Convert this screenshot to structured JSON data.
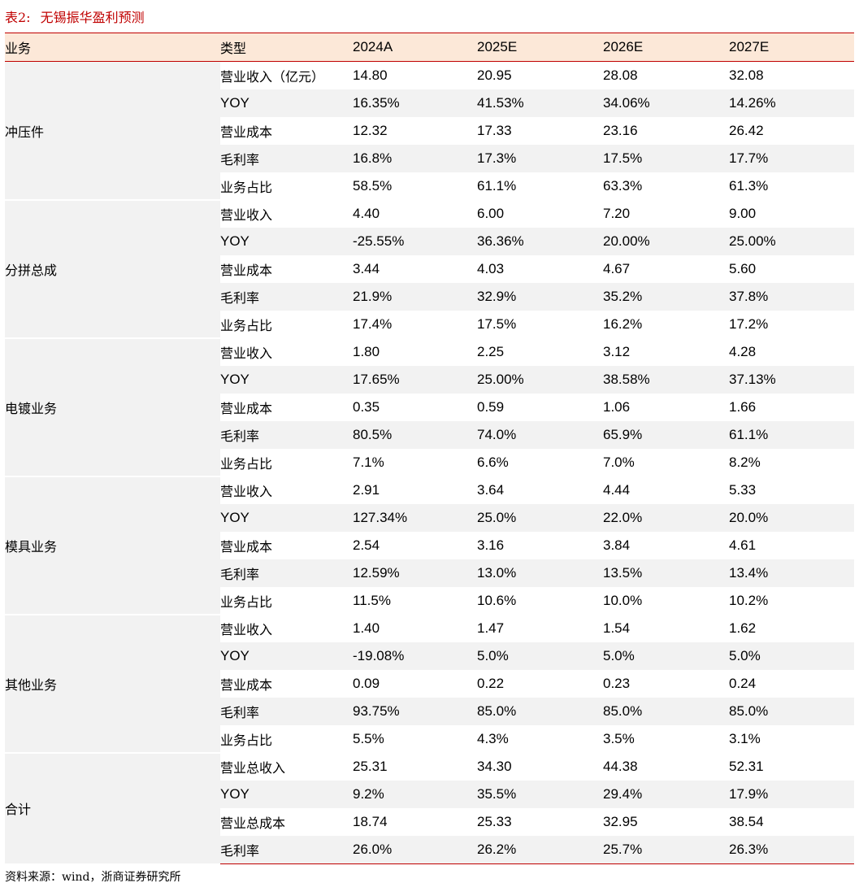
{
  "caption": {
    "number": "表2:",
    "title": "无锡振华盈利预测"
  },
  "table": {
    "headers": [
      "业务",
      "类型",
      "2024A",
      "2025E",
      "2026E",
      "2027E"
    ],
    "groups": [
      {
        "business": "冲压件",
        "rows": [
          {
            "type": "营业收入（亿元）",
            "values": [
              "14.80",
              "20.95",
              "28.08",
              "32.08"
            ]
          },
          {
            "type": "YOY",
            "values": [
              "16.35%",
              "41.53%",
              "34.06%",
              "14.26%"
            ]
          },
          {
            "type": "营业成本",
            "values": [
              "12.32",
              "17.33",
              "23.16",
              "26.42"
            ]
          },
          {
            "type": "毛利率",
            "values": [
              "16.8%",
              "17.3%",
              "17.5%",
              "17.7%"
            ]
          },
          {
            "type": "业务占比",
            "values": [
              "58.5%",
              "61.1%",
              "63.3%",
              "61.3%"
            ]
          }
        ]
      },
      {
        "business": "分拼总成",
        "rows": [
          {
            "type": "营业收入",
            "values": [
              "4.40",
              "6.00",
              "7.20",
              "9.00"
            ]
          },
          {
            "type": "YOY",
            "values": [
              "-25.55%",
              "36.36%",
              "20.00%",
              "25.00%"
            ]
          },
          {
            "type": "营业成本",
            "values": [
              "3.44",
              "4.03",
              "4.67",
              "5.60"
            ]
          },
          {
            "type": "毛利率",
            "values": [
              "21.9%",
              "32.9%",
              "35.2%",
              "37.8%"
            ]
          },
          {
            "type": "业务占比",
            "values": [
              "17.4%",
              "17.5%",
              "16.2%",
              "17.2%"
            ]
          }
        ]
      },
      {
        "business": "电镀业务",
        "rows": [
          {
            "type": "营业收入",
            "values": [
              "1.80",
              "2.25",
              "3.12",
              "4.28"
            ]
          },
          {
            "type": "YOY",
            "values": [
              "17.65%",
              "25.00%",
              "38.58%",
              "37.13%"
            ]
          },
          {
            "type": "营业成本",
            "values": [
              "0.35",
              "0.59",
              "1.06",
              "1.66"
            ]
          },
          {
            "type": "毛利率",
            "values": [
              "80.5%",
              "74.0%",
              "65.9%",
              "61.1%"
            ]
          },
          {
            "type": "业务占比",
            "values": [
              "7.1%",
              "6.6%",
              "7.0%",
              "8.2%"
            ]
          }
        ]
      },
      {
        "business": "模具业务",
        "rows": [
          {
            "type": "营业收入",
            "values": [
              "2.91",
              "3.64",
              "4.44",
              "5.33"
            ]
          },
          {
            "type": "YOY",
            "values": [
              "127.34%",
              "25.0%",
              "22.0%",
              "20.0%"
            ]
          },
          {
            "type": "营业成本",
            "values": [
              "2.54",
              "3.16",
              "3.84",
              "4.61"
            ]
          },
          {
            "type": "毛利率",
            "values": [
              "12.59%",
              "13.0%",
              "13.5%",
              "13.4%"
            ]
          },
          {
            "type": "业务占比",
            "values": [
              "11.5%",
              "10.6%",
              "10.0%",
              "10.2%"
            ]
          }
        ]
      },
      {
        "business": "其他业务",
        "rows": [
          {
            "type": "营业收入",
            "values": [
              "1.40",
              "1.47",
              "1.54",
              "1.62"
            ]
          },
          {
            "type": "YOY",
            "values": [
              "-19.08%",
              "5.0%",
              "5.0%",
              "5.0%"
            ]
          },
          {
            "type": "营业成本",
            "values": [
              "0.09",
              "0.22",
              "0.23",
              "0.24"
            ]
          },
          {
            "type": "毛利率",
            "values": [
              "93.75%",
              "85.0%",
              "85.0%",
              "85.0%"
            ]
          },
          {
            "type": "业务占比",
            "values": [
              "5.5%",
              "4.3%",
              "3.5%",
              "3.1%"
            ]
          }
        ]
      },
      {
        "business": "合计",
        "rows": [
          {
            "type": "营业总收入",
            "values": [
              "25.31",
              "34.30",
              "44.38",
              "52.31"
            ]
          },
          {
            "type": "YOY",
            "values": [
              "9.2%",
              "35.5%",
              "29.4%",
              "17.9%"
            ]
          },
          {
            "type": "营业总成本",
            "values": [
              "18.74",
              "25.33",
              "32.95",
              "38.54"
            ]
          },
          {
            "type": "毛利率",
            "values": [
              "26.0%",
              "26.2%",
              "25.7%",
              "26.3%"
            ]
          }
        ]
      }
    ]
  },
  "source_note": "资料来源：wind，浙商证券研究所"
}
